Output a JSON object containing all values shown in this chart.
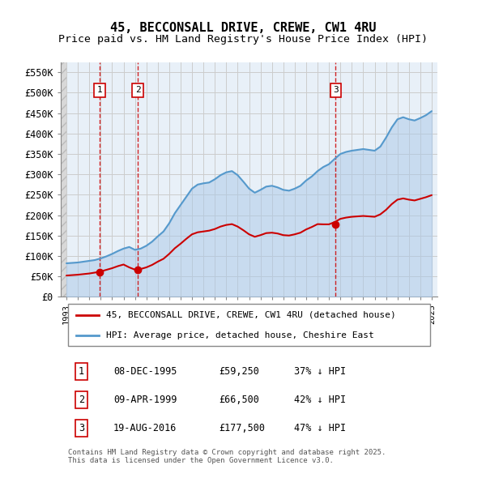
{
  "title": "45, BECCONSALL DRIVE, CREWE, CW1 4RU",
  "subtitle": "Price paid vs. HM Land Registry's House Price Index (HPI)",
  "legend_line1": "45, BECCONSALL DRIVE, CREWE, CW1 4RU (detached house)",
  "legend_line2": "HPI: Average price, detached house, Cheshire East",
  "footnote": "Contains HM Land Registry data © Crown copyright and database right 2025.\nThis data is licensed under the Open Government Licence v3.0.",
  "sale_dates": [
    "1995-12-08",
    "1999-04-09",
    "2016-08-19"
  ],
  "sale_prices": [
    59250,
    66500,
    177500
  ],
  "sale_labels": [
    "1",
    "2",
    "3"
  ],
  "sale_pct": [
    "37% ↓ HPI",
    "42% ↓ HPI",
    "47% ↓ HPI"
  ],
  "table_dates": [
    "08-DEC-1995",
    "09-APR-1999",
    "19-AUG-2016"
  ],
  "table_prices": [
    "£59,250",
    "£66,500",
    "£177,500"
  ],
  "ylim": [
    0,
    575000
  ],
  "yticks": [
    0,
    50000,
    100000,
    150000,
    200000,
    250000,
    300000,
    350000,
    400000,
    450000,
    500000,
    550000
  ],
  "ytick_labels": [
    "£0",
    "£50K",
    "£100K",
    "£150K",
    "£200K",
    "£250K",
    "£300K",
    "£350K",
    "£400K",
    "£450K",
    "£500K",
    "£550K"
  ],
  "color_red": "#cc0000",
  "color_blue": "#aac8e8",
  "color_blue_dark": "#5599cc",
  "hatch_color": "#cccccc",
  "grid_color": "#cccccc",
  "background_color": "#e8f0f8",
  "hatch_left_color": "#dddddd"
}
